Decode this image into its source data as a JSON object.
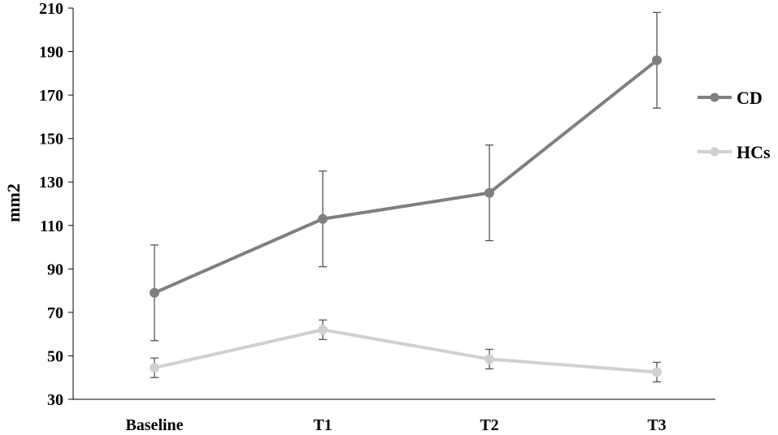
{
  "chart_data": {
    "type": "line",
    "title": "",
    "xlabel": "",
    "ylabel": "mm2",
    "categories": [
      "Baseline",
      "T1",
      "T2",
      "T3"
    ],
    "ylim": [
      30,
      210
    ],
    "yticks": [
      30,
      50,
      70,
      90,
      110,
      130,
      150,
      170,
      190,
      210
    ],
    "grid": false,
    "legend_position": "right",
    "series": [
      {
        "name": "CD",
        "color": "#7f7f7f",
        "values": [
          79,
          113,
          125,
          186
        ],
        "error_low": [
          57,
          91,
          103,
          164
        ],
        "error_high": [
          101,
          135,
          147,
          208
        ]
      },
      {
        "name": "HCs",
        "color": "#d0d0d0",
        "values": [
          44.5,
          62,
          48.5,
          42.5
        ],
        "error_low": [
          40,
          57.5,
          44,
          38
        ],
        "error_high": [
          49,
          66.5,
          53,
          47
        ]
      }
    ]
  }
}
